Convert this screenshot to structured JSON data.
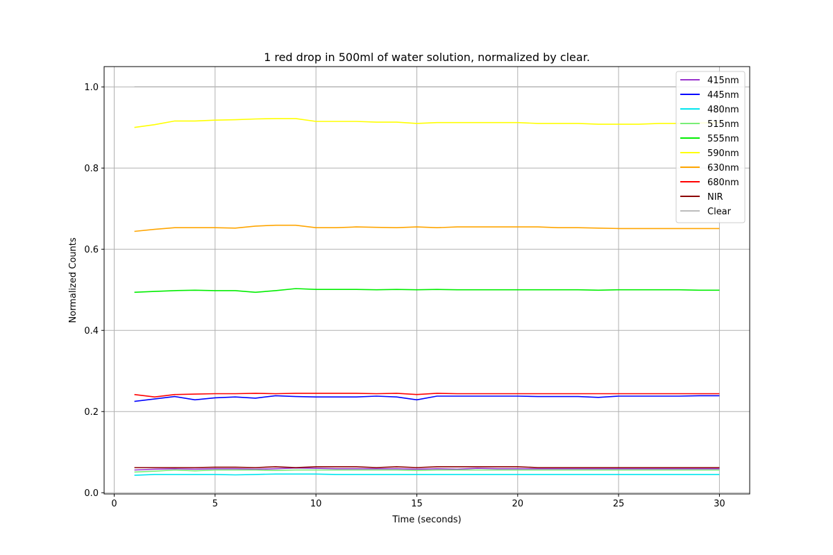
{
  "chart_data": {
    "type": "line",
    "title": "1 red drop in 500ml of water solution, normalized by clear.",
    "xlabel": "Time (seconds)",
    "ylabel": "Normalized Counts",
    "xlim": [
      -0.5,
      31.5
    ],
    "ylim": [
      -0.003,
      1.05
    ],
    "xticks": [
      0,
      5,
      10,
      15,
      20,
      25,
      30
    ],
    "yticks": [
      0.0,
      0.2,
      0.4,
      0.6,
      0.8,
      1.0
    ],
    "ytick_labels": [
      "0.0",
      "0.2",
      "0.4",
      "0.6",
      "0.8",
      "1.0"
    ],
    "grid": true,
    "legend_position": "top-right",
    "x": [
      1,
      2,
      3,
      4,
      5,
      6,
      7,
      8,
      9,
      10,
      11,
      12,
      13,
      14,
      15,
      16,
      17,
      18,
      19,
      20,
      21,
      22,
      23,
      24,
      25,
      26,
      27,
      28,
      29,
      30
    ],
    "series": [
      {
        "name": "415nm",
        "color": "#9933cc",
        "values": [
          0.056,
          0.058,
          0.059,
          0.058,
          0.059,
          0.059,
          0.058,
          0.059,
          0.061,
          0.06,
          0.059,
          0.059,
          0.059,
          0.059,
          0.058,
          0.059,
          0.058,
          0.06,
          0.059,
          0.059,
          0.059,
          0.059,
          0.059,
          0.059,
          0.059,
          0.059,
          0.059,
          0.059,
          0.059,
          0.059
        ]
      },
      {
        "name": "445nm",
        "color": "#0000ff",
        "values": [
          0.225,
          0.231,
          0.237,
          0.229,
          0.234,
          0.236,
          0.233,
          0.239,
          0.237,
          0.236,
          0.236,
          0.236,
          0.238,
          0.236,
          0.229,
          0.238,
          0.238,
          0.238,
          0.238,
          0.238,
          0.237,
          0.237,
          0.237,
          0.235,
          0.238,
          0.238,
          0.238,
          0.238,
          0.239,
          0.239
        ]
      },
      {
        "name": "480nm",
        "color": "#00e5ee",
        "values": [
          0.043,
          0.045,
          0.045,
          0.045,
          0.045,
          0.044,
          0.045,
          0.046,
          0.046,
          0.046,
          0.045,
          0.045,
          0.045,
          0.045,
          0.045,
          0.045,
          0.045,
          0.045,
          0.045,
          0.045,
          0.045,
          0.045,
          0.045,
          0.045,
          0.045,
          0.045,
          0.045,
          0.045,
          0.045,
          0.045
        ]
      },
      {
        "name": "515nm",
        "color": "#77ee77",
        "values": [
          0.051,
          0.053,
          0.056,
          0.054,
          0.056,
          0.056,
          0.056,
          0.055,
          0.056,
          0.056,
          0.056,
          0.056,
          0.056,
          0.056,
          0.055,
          0.056,
          0.056,
          0.056,
          0.056,
          0.056,
          0.056,
          0.056,
          0.056,
          0.056,
          0.056,
          0.056,
          0.056,
          0.056,
          0.056,
          0.056
        ]
      },
      {
        "name": "555nm",
        "color": "#00ee00",
        "values": [
          0.494,
          0.496,
          0.498,
          0.499,
          0.498,
          0.498,
          0.494,
          0.498,
          0.503,
          0.501,
          0.501,
          0.501,
          0.5,
          0.501,
          0.5,
          0.501,
          0.5,
          0.5,
          0.5,
          0.5,
          0.5,
          0.5,
          0.5,
          0.499,
          0.5,
          0.5,
          0.5,
          0.5,
          0.499,
          0.499
        ]
      },
      {
        "name": "590nm",
        "color": "#ffff00",
        "values": [
          0.9,
          0.907,
          0.916,
          0.916,
          0.918,
          0.919,
          0.921,
          0.922,
          0.922,
          0.915,
          0.915,
          0.915,
          0.913,
          0.913,
          0.91,
          0.912,
          0.912,
          0.912,
          0.912,
          0.912,
          0.91,
          0.91,
          0.91,
          0.908,
          0.908,
          0.908,
          0.91,
          0.91,
          0.911,
          0.912
        ]
      },
      {
        "name": "630nm",
        "color": "#ffa500",
        "values": [
          0.644,
          0.649,
          0.653,
          0.653,
          0.653,
          0.652,
          0.657,
          0.659,
          0.659,
          0.653,
          0.653,
          0.655,
          0.654,
          0.653,
          0.655,
          0.653,
          0.655,
          0.655,
          0.655,
          0.655,
          0.655,
          0.653,
          0.653,
          0.652,
          0.651,
          0.651,
          0.651,
          0.651,
          0.651,
          0.651
        ]
      },
      {
        "name": "680nm",
        "color": "#ff0000",
        "values": [
          0.242,
          0.236,
          0.242,
          0.243,
          0.244,
          0.244,
          0.245,
          0.244,
          0.245,
          0.245,
          0.245,
          0.245,
          0.244,
          0.245,
          0.242,
          0.245,
          0.244,
          0.244,
          0.244,
          0.244,
          0.244,
          0.244,
          0.244,
          0.244,
          0.244,
          0.244,
          0.244,
          0.244,
          0.244,
          0.244
        ]
      },
      {
        "name": "NIR",
        "color": "#8b0000",
        "values": [
          0.062,
          0.062,
          0.062,
          0.062,
          0.063,
          0.063,
          0.062,
          0.064,
          0.062,
          0.064,
          0.064,
          0.064,
          0.062,
          0.064,
          0.062,
          0.064,
          0.064,
          0.064,
          0.064,
          0.064,
          0.062,
          0.062,
          0.062,
          0.062,
          0.062,
          0.062,
          0.062,
          0.062,
          0.062,
          0.062
        ]
      },
      {
        "name": "Clear",
        "color": "#bbbbbb",
        "values": [
          1.0,
          1.0,
          1.0,
          1.0,
          1.0,
          1.0,
          1.0,
          1.0,
          1.0,
          1.0,
          1.0,
          1.0,
          1.0,
          1.0,
          1.0,
          1.0,
          1.0,
          1.0,
          1.0,
          1.0,
          1.0,
          1.0,
          1.0,
          1.0,
          1.0,
          1.0,
          1.0,
          1.0,
          1.0,
          1.0
        ]
      }
    ]
  }
}
